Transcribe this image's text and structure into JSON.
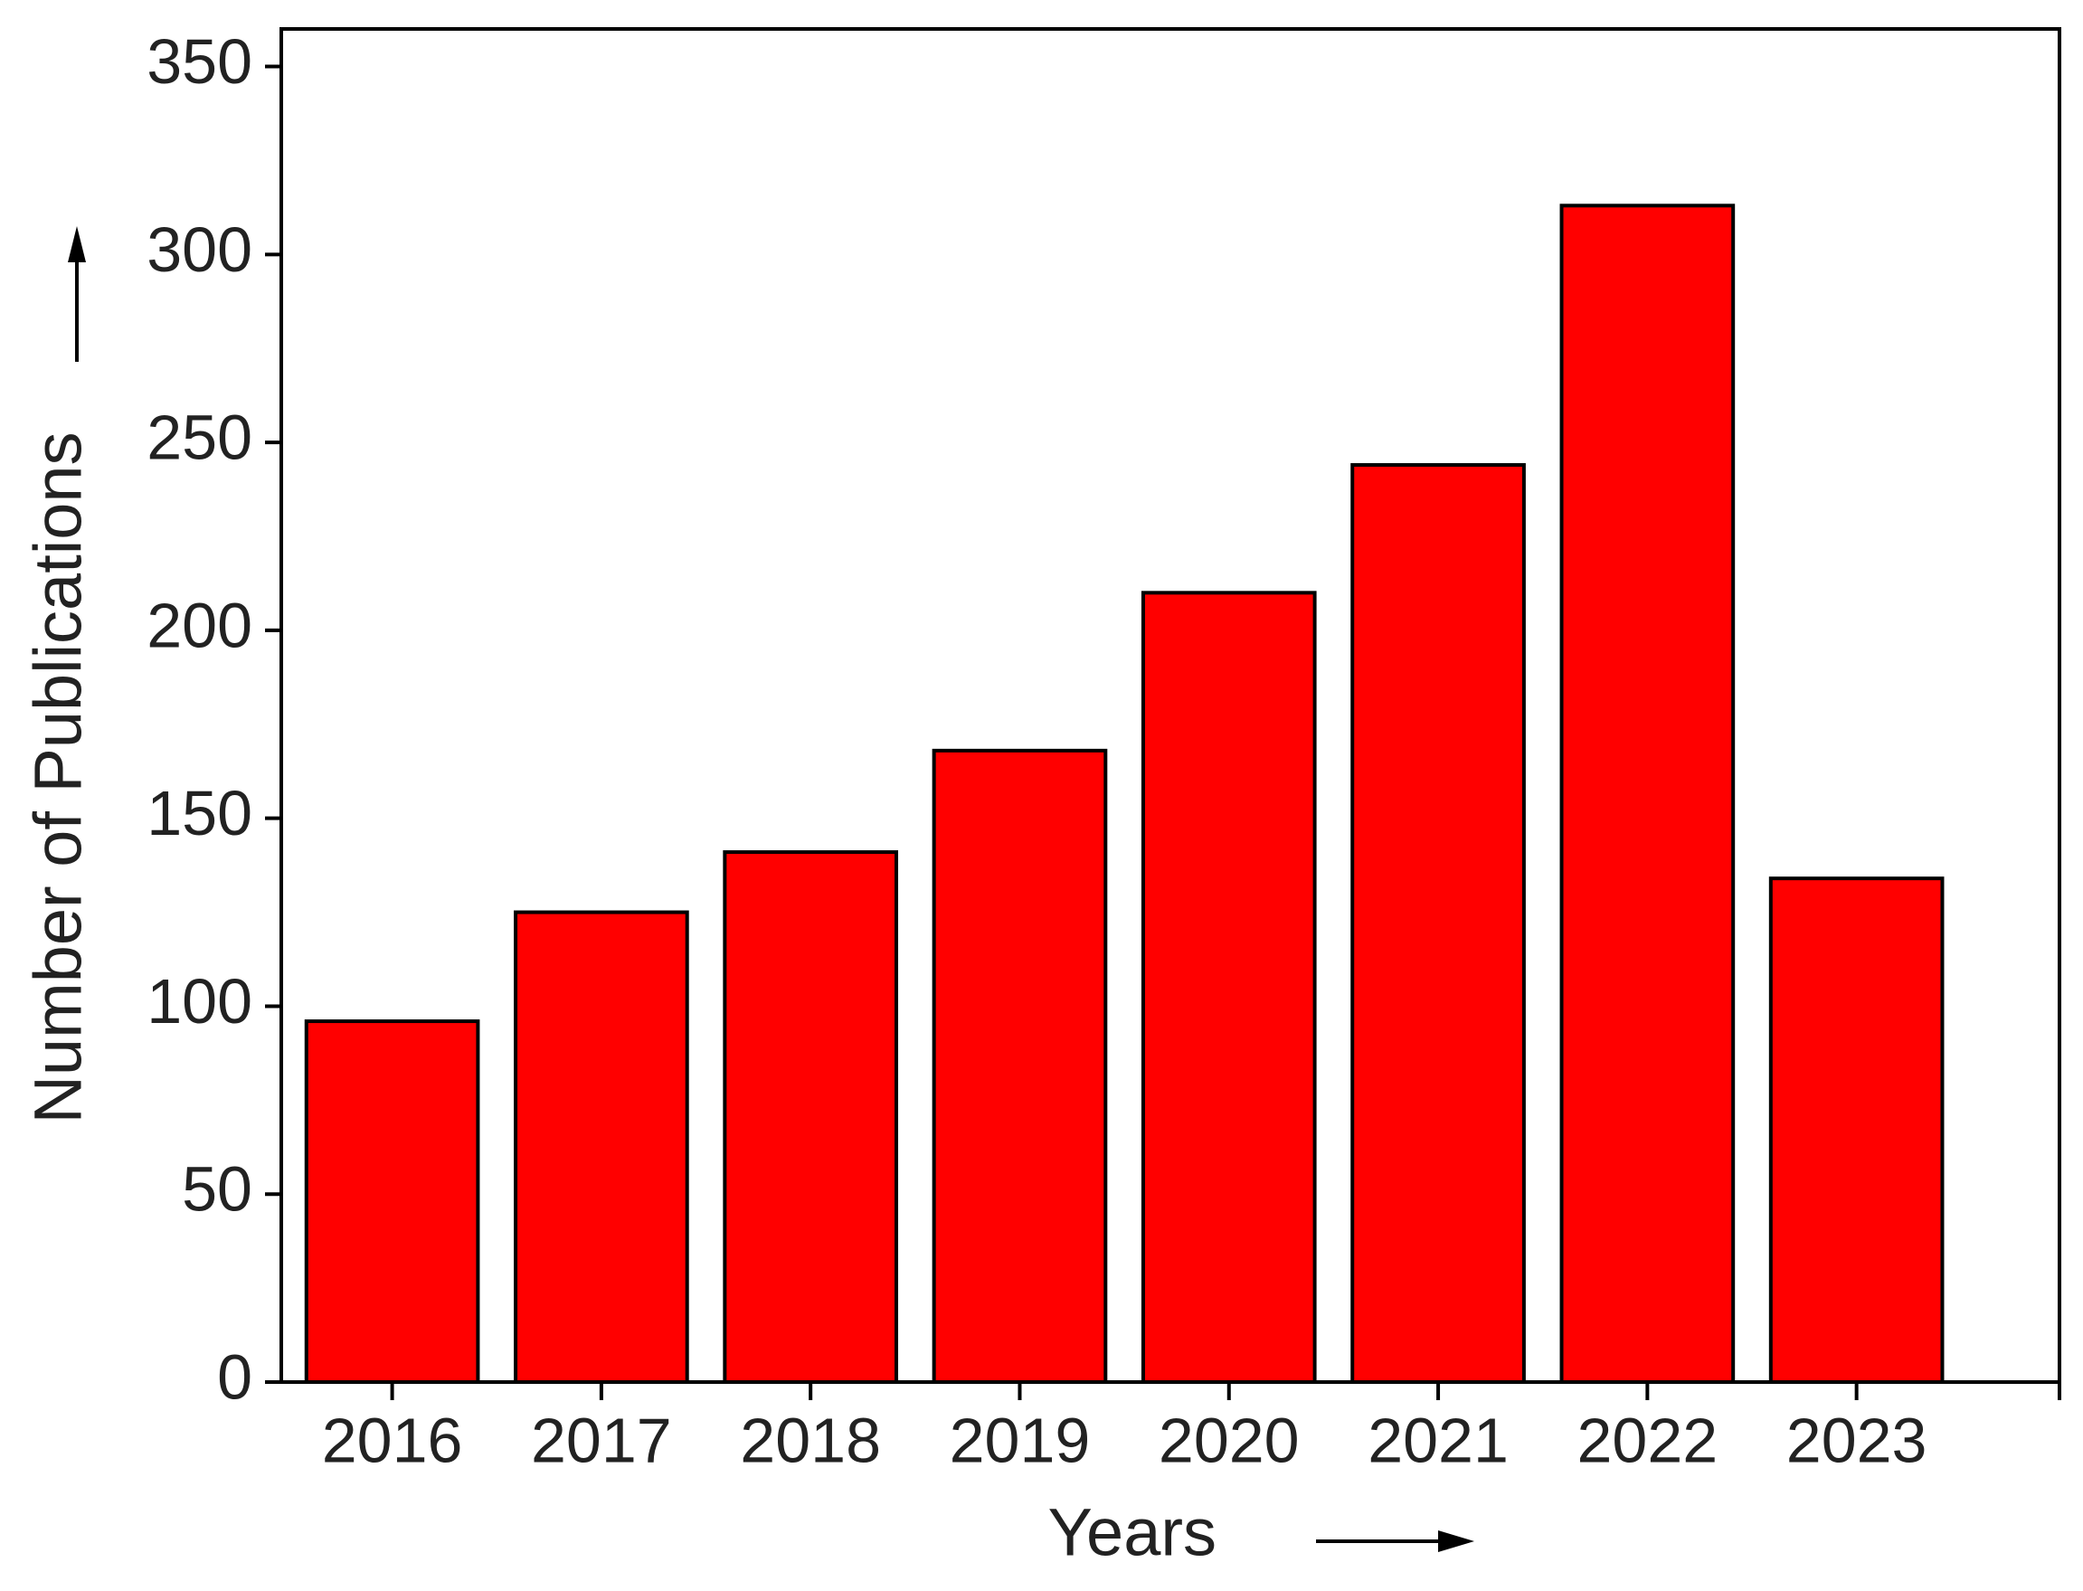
{
  "chart_data": {
    "type": "bar",
    "x_label": "Years",
    "y_label": "Number of Publications",
    "categories": [
      "2016",
      "2017",
      "2018",
      "2019",
      "2020",
      "2021",
      "2022",
      "2023"
    ],
    "values": [
      96,
      125,
      141,
      168,
      210,
      244,
      313,
      134
    ],
    "color": "#ff0000",
    "ylim": [
      0,
      360
    ],
    "yticks": [
      0,
      50,
      100,
      150,
      200,
      250,
      300,
      350
    ],
    "grid": false
  }
}
